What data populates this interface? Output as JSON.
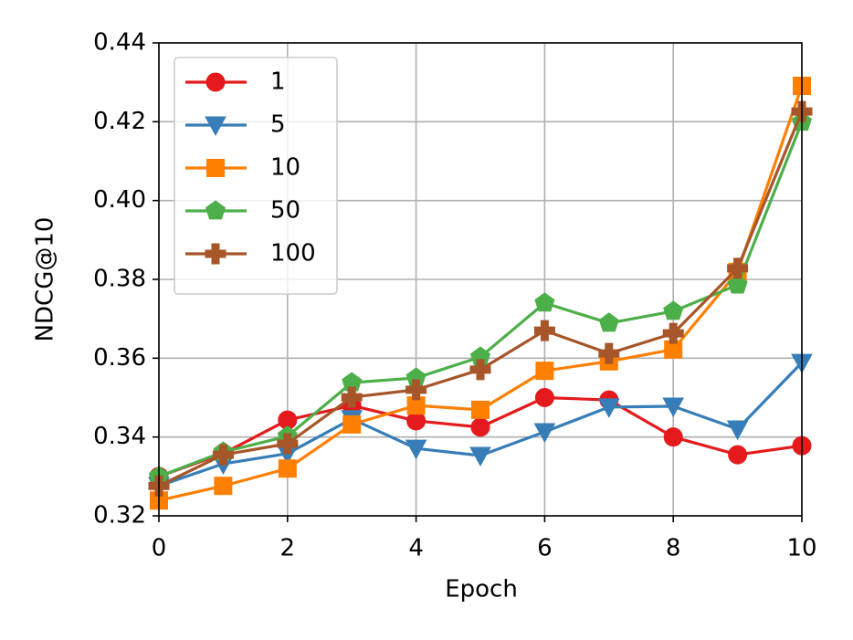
{
  "chart_data": {
    "type": "line",
    "xlabel": "Epoch",
    "ylabel": "NDCG@10",
    "x": [
      0,
      1,
      2,
      3,
      4,
      5,
      6,
      7,
      8,
      9,
      10
    ],
    "xlim": [
      0,
      10
    ],
    "xticks": [
      0,
      2,
      4,
      6,
      8,
      10
    ],
    "ylim": [
      0.32,
      0.44
    ],
    "yticks": [
      0.32,
      0.34,
      0.36,
      0.38,
      {
        "value": 0.4,
        "label": "0.40"
      },
      0.42,
      0.44
    ],
    "grid": true,
    "legend": "upper left",
    "series": [
      {
        "name": "1",
        "color": "#e41a1c",
        "marker": "circle",
        "values": [
          0.33,
          0.3358,
          0.3443,
          0.348,
          0.3441,
          0.3425,
          0.35,
          0.3494,
          0.34,
          0.3355,
          0.3378
        ]
      },
      {
        "name": "5",
        "color": "#377eb8",
        "marker": "triangle-down",
        "values": [
          0.3276,
          0.3332,
          0.3358,
          0.3446,
          0.3371,
          0.3353,
          0.3413,
          0.3476,
          0.3478,
          0.342,
          0.3589
        ]
      },
      {
        "name": "10",
        "color": "#ff7f00",
        "marker": "square",
        "values": [
          0.3239,
          0.3276,
          0.332,
          0.3432,
          0.348,
          0.3469,
          0.3568,
          0.3592,
          0.3622,
          0.3819,
          0.4291
        ]
      },
      {
        "name": "50",
        "color": "#4daf4a",
        "marker": "pentagon",
        "values": [
          0.33,
          0.3362,
          0.3402,
          0.3538,
          0.355,
          0.3603,
          0.374,
          0.3689,
          0.3719,
          0.3786,
          0.4199
        ]
      },
      {
        "name": "100",
        "color": "#a65628",
        "marker": "plus",
        "values": [
          0.3276,
          0.3355,
          0.3383,
          0.3501,
          0.352,
          0.3571,
          0.367,
          0.3612,
          0.3663,
          0.3828,
          0.4226
        ]
      }
    ]
  }
}
